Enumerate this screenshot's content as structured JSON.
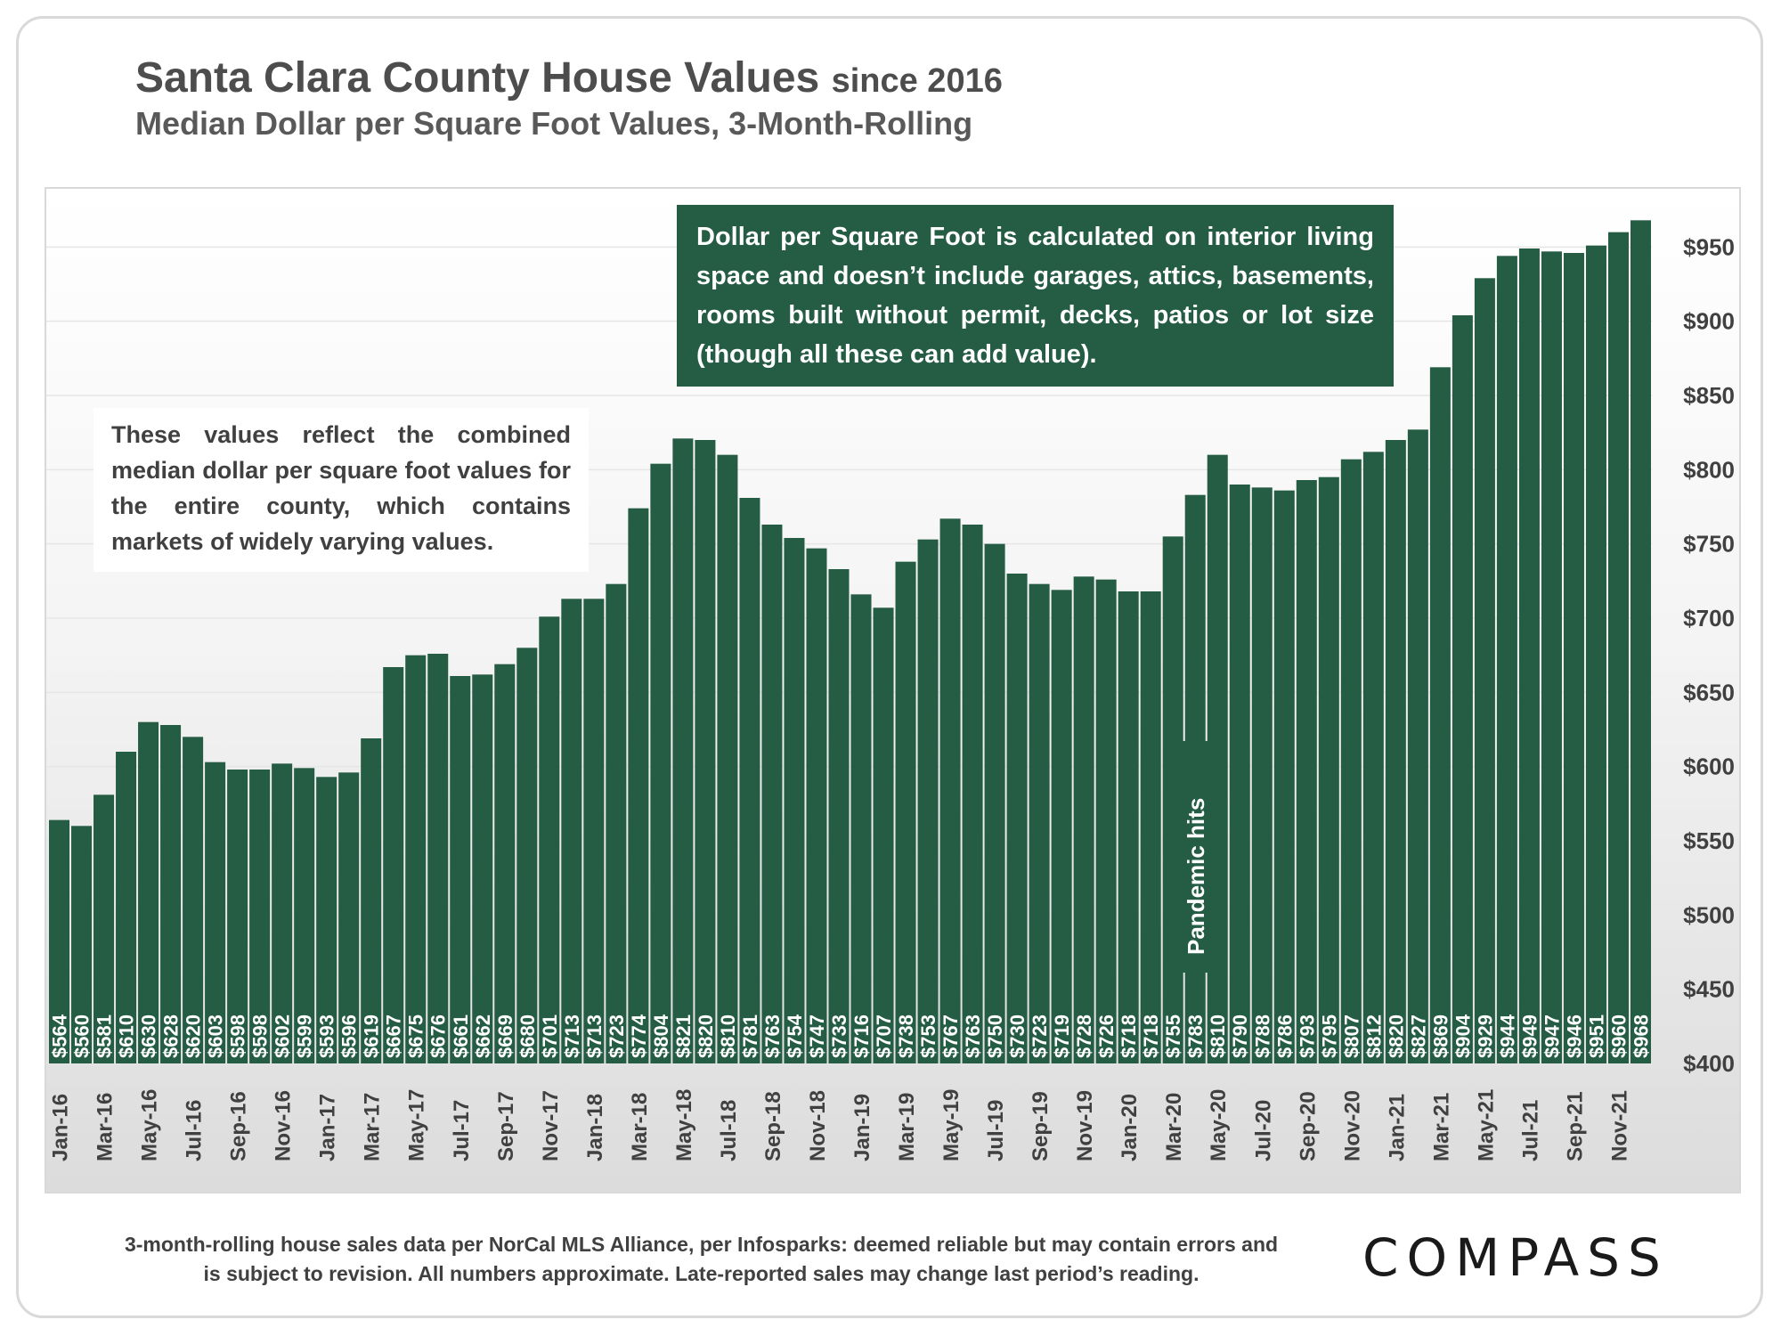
{
  "header": {
    "title": "Santa Clara County House Values",
    "title_suffix": "since 2016",
    "subtitle": "Median Dollar per Square Foot Values, 3-Month-Rolling"
  },
  "notes": {
    "definition": "Dollar per Square Foot is calculated on interior living space and doesn’t include garages, attics, basements, rooms built without permit, decks, patios or lot size (though all these can add value).",
    "county": "These values reflect the combined median dollar per square foot values for the entire county, which contains markets of widely varying values."
  },
  "footer": {
    "source": "3-month-rolling house sales data per NorCal MLS Alliance, per Infosparks: deemed reliable but may contain errors and is subject to revision. All numbers approximate. Late-reported sales may change last period’s reading."
  },
  "logo": {
    "text": "COMPASS"
  },
  "colors": {
    "bar": "#245c44",
    "bar_label": "#ffffff",
    "axis_text": "#404040"
  },
  "chart_data": {
    "type": "bar",
    "title": "Santa Clara County House Values since 2016",
    "subtitle": "Median Dollar per Square Foot Values, 3-Month-Rolling",
    "xlabel": "",
    "ylabel": "",
    "ylim": [
      400,
      970
    ],
    "y_ticks": [
      "$400",
      "$450",
      "$500",
      "$550",
      "$600",
      "$650",
      "$700",
      "$750",
      "$800",
      "$850",
      "$900",
      "$950"
    ],
    "y_tick_values": [
      400,
      450,
      500,
      550,
      600,
      650,
      700,
      750,
      800,
      850,
      900,
      950
    ],
    "y_axis_side": "right",
    "grid": true,
    "legend": "none",
    "categories": [
      "Jan-16",
      "Feb-16",
      "Mar-16",
      "Apr-16",
      "May-16",
      "Jun-16",
      "Jul-16",
      "Aug-16",
      "Sep-16",
      "Oct-16",
      "Nov-16",
      "Dec-16",
      "Jan-17",
      "Feb-17",
      "Mar-17",
      "Apr-17",
      "May-17",
      "Jun-17",
      "Jul-17",
      "Aug-17",
      "Sep-17",
      "Oct-17",
      "Nov-17",
      "Dec-17",
      "Jan-18",
      "Feb-18",
      "Mar-18",
      "Apr-18",
      "May-18",
      "Jun-18",
      "Jul-18",
      "Aug-18",
      "Sep-18",
      "Oct-18",
      "Nov-18",
      "Dec-18",
      "Jan-19",
      "Feb-19",
      "Mar-19",
      "Apr-19",
      "May-19",
      "Jun-19",
      "Jul-19",
      "Aug-19",
      "Sep-19",
      "Oct-19",
      "Nov-19",
      "Dec-19",
      "Jan-20",
      "Feb-20",
      "Mar-20",
      "Apr-20",
      "May-20",
      "Jun-20",
      "Jul-20",
      "Aug-20",
      "Sep-20",
      "Oct-20",
      "Nov-20",
      "Dec-20",
      "Jan-21",
      "Feb-21",
      "Mar-21",
      "Apr-21",
      "May-21",
      "Jun-21",
      "Jul-21",
      "Aug-21",
      "Sep-21",
      "Oct-21",
      "Nov-21",
      "Dec-21"
    ],
    "shown_x_labels": [
      "Jan-16",
      "Mar-16",
      "May-16",
      "Jul-16",
      "Sep-16",
      "Nov-16",
      "Jan-17",
      "Mar-17",
      "May-17",
      "Jul-17",
      "Sep-17",
      "Nov-17",
      "Jan-18",
      "Mar-18",
      "May-18",
      "Jul-18",
      "Sep-18",
      "Nov-18",
      "Jan-19",
      "Mar-19",
      "May-19",
      "Jul-19",
      "Sep-19",
      "Nov-19",
      "Jan-20",
      "Mar-20",
      "May-20",
      "Jul-20",
      "Sep-20",
      "Nov-20",
      "Jan-21",
      "Mar-21",
      "May-21",
      "Jul-21",
      "Sep-21",
      "Nov-21"
    ],
    "values": [
      564,
      560,
      581,
      610,
      630,
      628,
      620,
      603,
      598,
      598,
      602,
      599,
      593,
      596,
      619,
      667,
      675,
      676,
      661,
      662,
      669,
      680,
      701,
      713,
      713,
      723,
      774,
      804,
      821,
      820,
      810,
      781,
      763,
      754,
      747,
      733,
      716,
      707,
      738,
      753,
      767,
      763,
      750,
      730,
      723,
      719,
      728,
      726,
      718,
      718,
      755,
      783,
      810,
      790,
      788,
      786,
      793,
      795,
      807,
      812,
      820,
      827,
      869,
      904,
      929,
      944,
      949,
      947,
      946,
      951,
      960,
      968
    ],
    "data_labels": [
      "$564",
      "$560",
      "$581",
      "$610",
      "$630",
      "$628",
      "$620",
      "$603",
      "$598",
      "$598",
      "$602",
      "$599",
      "$593",
      "$596",
      "$619",
      "$667",
      "$675",
      "$676",
      "$661",
      "$662",
      "$669",
      "$680",
      "$701",
      "$713",
      "$713",
      "$723",
      "$774",
      "$804",
      "$821",
      "$820",
      "$810",
      "$781",
      "$763",
      "$754",
      "$747",
      "$733",
      "$716",
      "$707",
      "$738",
      "$753",
      "$767",
      "$763",
      "$750",
      "$730",
      "$723",
      "$719",
      "$728",
      "$726",
      "$718",
      "$718",
      "$755",
      "$783",
      "$810",
      "$790",
      "$788",
      "$786",
      "$793",
      "$795",
      "$807",
      "$812",
      "$820",
      "$827",
      "$869",
      "$904",
      "$929",
      "$944",
      "$949",
      "$947",
      "$946",
      "$951",
      "$960",
      "$968"
    ],
    "annotations": [
      {
        "text": "Pandemic hits",
        "category": "Apr-20"
      }
    ]
  }
}
